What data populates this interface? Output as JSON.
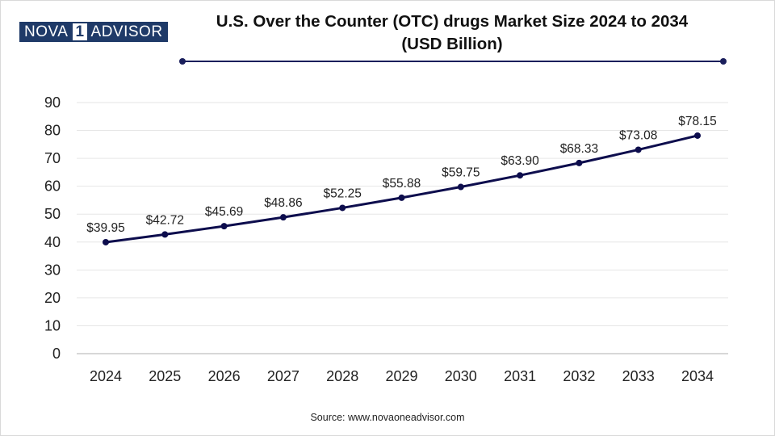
{
  "brand": {
    "logo_part1": "NOVA",
    "logo_part2": "1",
    "logo_part3": "ADVISOR"
  },
  "colors": {
    "line": "#0d0d4d",
    "logo": "#1f3a68",
    "grid": "#e6e6e6"
  },
  "source_text": "Source: www.novaoneadvisor.com",
  "chart_data": {
    "type": "line",
    "title_line1": "U.S. Over the Counter (OTC) drugs Market Size 2024 to 2034",
    "title_line2": "(USD Billion)",
    "xlabel": "",
    "ylabel": "",
    "categories": [
      "2024",
      "2025",
      "2026",
      "2027",
      "2028",
      "2029",
      "2030",
      "2031",
      "2032",
      "2033",
      "2034"
    ],
    "values": [
      39.95,
      42.72,
      45.69,
      48.86,
      52.25,
      55.88,
      59.75,
      63.9,
      68.33,
      73.08,
      78.15
    ],
    "data_labels": [
      "$39.95",
      "$42.72",
      "$45.69",
      "$48.86",
      "$52.25",
      "$55.88",
      "$59.75",
      "$63.90",
      "$68.33",
      "$73.08",
      "$78.15"
    ],
    "yticks": [
      0,
      10,
      20,
      30,
      40,
      50,
      60,
      70,
      80,
      90
    ],
    "ylim": [
      0,
      90
    ],
    "grid": true,
    "legend": "none"
  }
}
